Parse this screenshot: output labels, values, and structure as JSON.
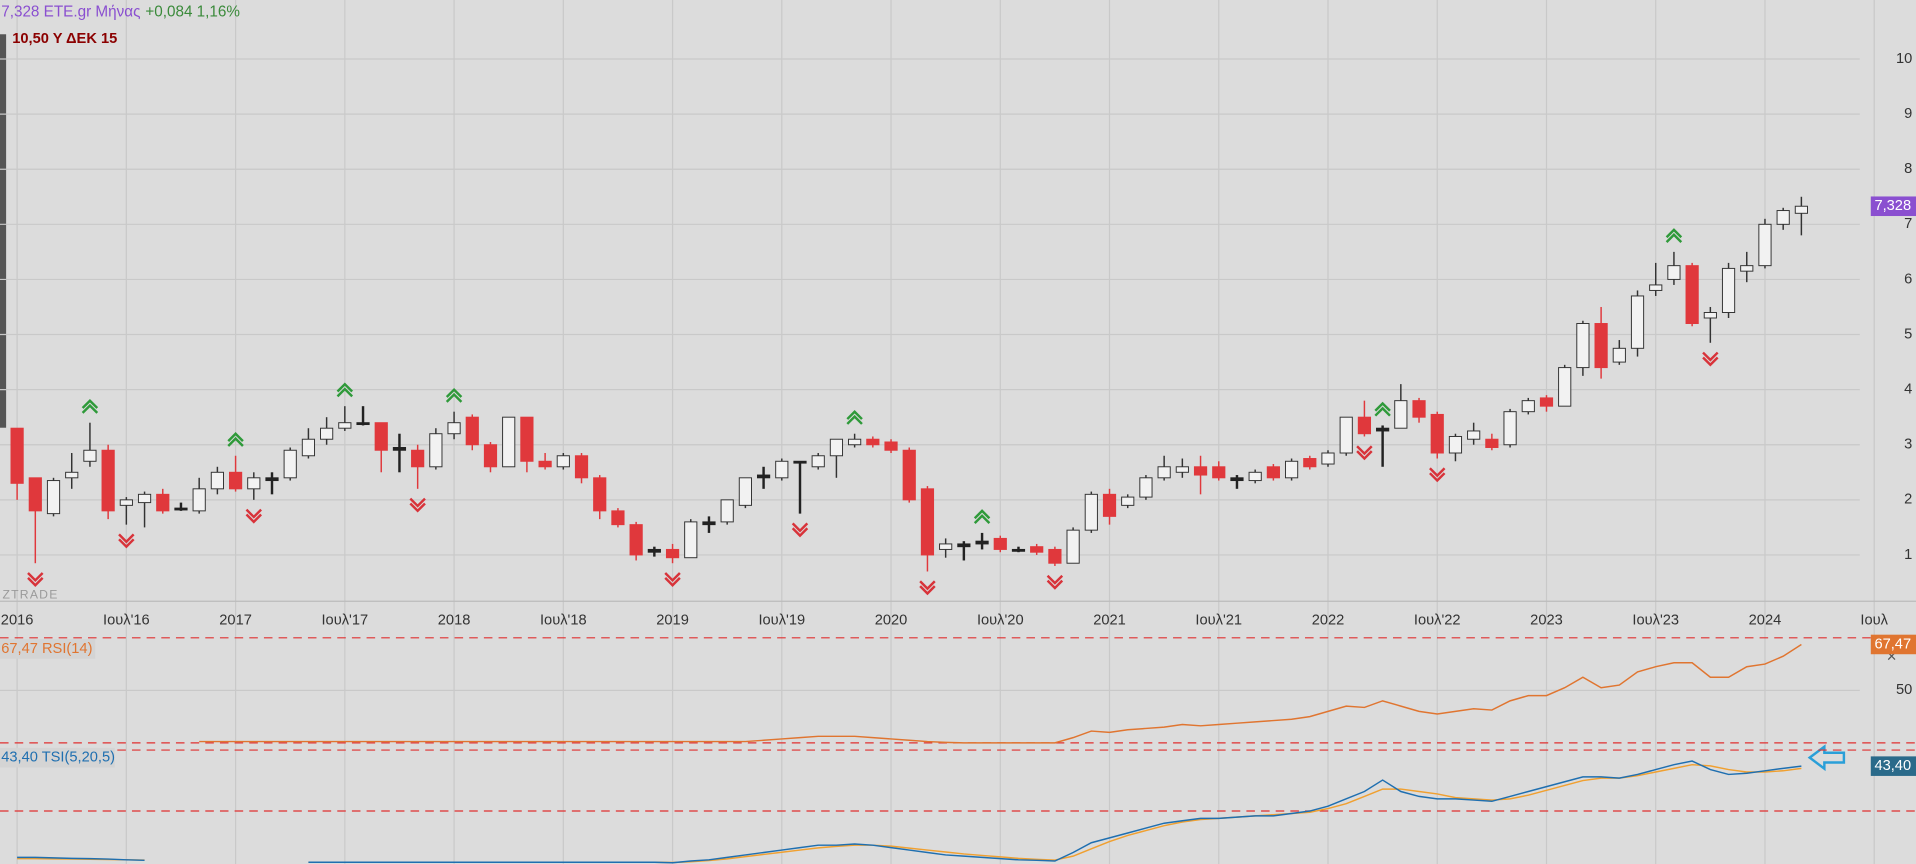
{
  "header": {
    "title": "7,328 ETE.gr Μήνας",
    "change": "+0,084 1,16%",
    "note": "10,50 Υ ΔΕΚ 15",
    "watermark": "ZTRADE"
  },
  "chart_data": [
    {
      "type": "candlestick",
      "up_color": "#f2f2f2",
      "down_color": "#e0383c",
      "grid": true,
      "price_label": "7,328",
      "label_color": "#8a4fd0",
      "categories": [
        "2016",
        null,
        null,
        null,
        null,
        null,
        "Ιουλ'16",
        null,
        null,
        null,
        null,
        null,
        "2017",
        null,
        null,
        null,
        null,
        null,
        "Ιουλ'17",
        null,
        null,
        null,
        null,
        null,
        "2018",
        null,
        null,
        null,
        null,
        null,
        "Ιουλ'18",
        null,
        null,
        null,
        null,
        null,
        "2019",
        null,
        null,
        null,
        null,
        null,
        "Ιουλ'19",
        null,
        null,
        null,
        null,
        null,
        "2020",
        null,
        null,
        null,
        null,
        null,
        "Ιουλ'20",
        null,
        null,
        null,
        null,
        null,
        "2021",
        null,
        null,
        null,
        null,
        null,
        "Ιουλ'21",
        null,
        null,
        null,
        null,
        null,
        "2022",
        null,
        null,
        null,
        null,
        null,
        "Ιουλ'22",
        null,
        null,
        null,
        null,
        null,
        "2023",
        null,
        null,
        null,
        null,
        null,
        "Ιουλ'23",
        null,
        null,
        null,
        null,
        null,
        "2024",
        null,
        null,
        null,
        null,
        null,
        "Ιουλ"
      ],
      "candles": [
        [
          3.3,
          3.3,
          2.0,
          2.3
        ],
        [
          2.4,
          2.4,
          0.85,
          1.8
        ],
        [
          1.75,
          2.4,
          1.7,
          2.35
        ],
        [
          2.4,
          2.85,
          2.2,
          2.5
        ],
        [
          2.7,
          3.4,
          2.6,
          2.9
        ],
        [
          2.9,
          3.0,
          1.65,
          1.8
        ],
        [
          1.9,
          2.05,
          1.55,
          2.0
        ],
        [
          1.95,
          2.15,
          1.5,
          2.1
        ],
        [
          2.1,
          2.2,
          1.75,
          1.8
        ],
        [
          1.85,
          1.95,
          1.8,
          1.85
        ],
        [
          1.8,
          2.4,
          1.75,
          2.2
        ],
        [
          2.2,
          2.6,
          2.1,
          2.5
        ],
        [
          2.5,
          2.8,
          2.15,
          2.2
        ],
        [
          2.2,
          2.5,
          2.0,
          2.4
        ],
        [
          2.35,
          2.5,
          2.1,
          2.4
        ],
        [
          2.4,
          2.95,
          2.35,
          2.9
        ],
        [
          2.8,
          3.3,
          2.75,
          3.1
        ],
        [
          3.1,
          3.5,
          3.0,
          3.3
        ],
        [
          3.3,
          3.7,
          3.25,
          3.4
        ],
        [
          3.4,
          3.7,
          3.35,
          3.38
        ],
        [
          3.4,
          3.4,
          2.5,
          2.9
        ],
        [
          2.95,
          3.2,
          2.5,
          2.9
        ],
        [
          2.9,
          3.0,
          2.2,
          2.6
        ],
        [
          2.6,
          3.3,
          2.55,
          3.2
        ],
        [
          3.2,
          3.6,
          3.1,
          3.4
        ],
        [
          3.5,
          3.55,
          2.9,
          3.0
        ],
        [
          3.0,
          3.05,
          2.5,
          2.6
        ],
        [
          2.6,
          3.5,
          2.6,
          3.5
        ],
        [
          3.5,
          3.5,
          2.5,
          2.7
        ],
        [
          2.7,
          2.85,
          2.55,
          2.6
        ],
        [
          2.6,
          2.85,
          2.55,
          2.8
        ],
        [
          2.8,
          2.85,
          2.3,
          2.4
        ],
        [
          2.4,
          2.45,
          1.65,
          1.8
        ],
        [
          1.8,
          1.85,
          1.5,
          1.55
        ],
        [
          1.55,
          1.6,
          0.9,
          1.0
        ],
        [
          1.05,
          1.15,
          0.97,
          1.1
        ],
        [
          1.1,
          1.2,
          0.85,
          0.95
        ],
        [
          0.95,
          1.65,
          0.95,
          1.6
        ],
        [
          1.6,
          1.7,
          1.4,
          1.55
        ],
        [
          1.6,
          2.0,
          1.55,
          2.0
        ],
        [
          1.9,
          2.4,
          1.85,
          2.4
        ],
        [
          2.4,
          2.6,
          2.2,
          2.45
        ],
        [
          2.4,
          2.75,
          2.35,
          2.7
        ],
        [
          2.7,
          2.7,
          1.75,
          2.68
        ],
        [
          2.6,
          2.85,
          2.55,
          2.8
        ],
        [
          2.8,
          3.1,
          2.4,
          3.1
        ],
        [
          3.0,
          3.2,
          2.95,
          3.1
        ],
        [
          3.1,
          3.15,
          2.95,
          3.0
        ],
        [
          3.05,
          3.1,
          2.85,
          2.9
        ],
        [
          2.9,
          2.95,
          1.95,
          2.0
        ],
        [
          2.2,
          2.25,
          0.7,
          1.0
        ],
        [
          1.1,
          1.3,
          0.95,
          1.2
        ],
        [
          1.2,
          1.25,
          0.9,
          1.15
        ],
        [
          1.2,
          1.4,
          1.1,
          1.25
        ],
        [
          1.3,
          1.35,
          1.05,
          1.1
        ],
        [
          1.1,
          1.15,
          1.05,
          1.1
        ],
        [
          1.15,
          1.2,
          1.0,
          1.05
        ],
        [
          1.1,
          1.15,
          0.8,
          0.85
        ],
        [
          0.85,
          1.5,
          0.85,
          1.45
        ],
        [
          1.45,
          2.15,
          1.4,
          2.1
        ],
        [
          2.1,
          2.2,
          1.55,
          1.7
        ],
        [
          1.9,
          2.1,
          1.85,
          2.05
        ],
        [
          2.05,
          2.45,
          2.0,
          2.4
        ],
        [
          2.4,
          2.8,
          2.35,
          2.6
        ],
        [
          2.5,
          2.75,
          2.4,
          2.6
        ],
        [
          2.6,
          2.8,
          2.1,
          2.45
        ],
        [
          2.6,
          2.7,
          2.35,
          2.4
        ],
        [
          2.4,
          2.45,
          2.2,
          2.35
        ],
        [
          2.35,
          2.55,
          2.3,
          2.5
        ],
        [
          2.6,
          2.65,
          2.35,
          2.4
        ],
        [
          2.4,
          2.75,
          2.35,
          2.7
        ],
        [
          2.75,
          2.8,
          2.55,
          2.6
        ],
        [
          2.65,
          2.9,
          2.6,
          2.85
        ],
        [
          2.85,
          3.5,
          2.8,
          3.5
        ],
        [
          3.5,
          3.8,
          3.15,
          3.2
        ],
        [
          3.25,
          3.35,
          2.6,
          3.3
        ],
        [
          3.3,
          4.1,
          3.3,
          3.8
        ],
        [
          3.8,
          3.85,
          3.4,
          3.5
        ],
        [
          3.55,
          3.6,
          2.75,
          2.85
        ],
        [
          2.85,
          3.2,
          2.7,
          3.15
        ],
        [
          3.1,
          3.4,
          3.0,
          3.25
        ],
        [
          3.1,
          3.2,
          2.9,
          2.95
        ],
        [
          3.0,
          3.65,
          2.95,
          3.6
        ],
        [
          3.6,
          3.85,
          3.55,
          3.8
        ],
        [
          3.85,
          3.9,
          3.6,
          3.7
        ],
        [
          3.7,
          4.45,
          3.7,
          4.4
        ],
        [
          4.4,
          5.25,
          4.25,
          5.2
        ],
        [
          5.2,
          5.5,
          4.2,
          4.4
        ],
        [
          4.5,
          4.9,
          4.45,
          4.75
        ],
        [
          4.75,
          5.8,
          4.6,
          5.7
        ],
        [
          5.8,
          6.3,
          5.7,
          5.9
        ],
        [
          6.0,
          6.5,
          5.9,
          6.25
        ],
        [
          6.25,
          6.3,
          5.15,
          5.2
        ],
        [
          5.3,
          5.5,
          4.85,
          5.4
        ],
        [
          5.4,
          6.3,
          5.3,
          6.2
        ],
        [
          6.15,
          6.5,
          5.95,
          6.25
        ],
        [
          6.25,
          7.1,
          6.2,
          7.0
        ],
        [
          7.0,
          7.3,
          6.9,
          7.25
        ],
        [
          7.2,
          7.5,
          6.8,
          7.328
        ],
        null,
        null,
        null,
        null
      ],
      "markers": [
        null,
        "down",
        null,
        null,
        "up",
        null,
        "down",
        null,
        null,
        null,
        null,
        null,
        "up",
        "down",
        null,
        null,
        null,
        null,
        "up",
        null,
        null,
        null,
        "down",
        null,
        "up",
        null,
        null,
        null,
        null,
        null,
        null,
        null,
        null,
        null,
        null,
        null,
        "down",
        null,
        null,
        null,
        null,
        null,
        null,
        "down",
        null,
        null,
        "up",
        null,
        null,
        null,
        "down",
        null,
        null,
        "up",
        null,
        null,
        null,
        "down",
        null,
        null,
        null,
        null,
        null,
        null,
        null,
        null,
        null,
        null,
        null,
        null,
        null,
        null,
        null,
        null,
        "down",
        "up",
        null,
        null,
        "down",
        null,
        null,
        null,
        null,
        null,
        null,
        null,
        null,
        null,
        null,
        null,
        null,
        "up",
        null,
        "down",
        null,
        null,
        null,
        null,
        null,
        null,
        null,
        null,
        null
      ],
      "ylim": [
        0.16,
        11.07
      ],
      "yticks": [
        1,
        2,
        3,
        4,
        5,
        6,
        7,
        8,
        9,
        10
      ]
    },
    {
      "type": "line",
      "legend": "67,47 RSI(14)",
      "value_label": "67,47",
      "ylim": [
        29.5,
        70.9
      ],
      "yticks": [
        50
      ],
      "levels": [
        30,
        70
      ],
      "series": [
        {
          "color": "#e07530",
          "values": [
            null,
            null,
            null,
            null,
            null,
            null,
            null,
            null,
            null,
            null,
            30.5,
            30.5,
            30.5,
            30.5,
            30.5,
            30.5,
            30.5,
            30.5,
            30.5,
            30.5,
            30.5,
            30.5,
            30.5,
            30.5,
            30.5,
            30.5,
            30.5,
            30.5,
            30.5,
            30.5,
            30.5,
            30.5,
            30.5,
            30.5,
            30.5,
            30.5,
            30.5,
            30.5,
            30.5,
            30.5,
            30.5,
            31,
            31.5,
            32,
            32.5,
            32.5,
            32.5,
            32,
            31.5,
            31,
            30.5,
            30.2,
            30,
            30,
            30,
            30,
            30,
            30,
            32,
            34.5,
            34,
            35,
            35.5,
            36,
            37,
            36.5,
            37,
            37.5,
            38,
            38.5,
            39,
            40,
            42,
            44,
            43.5,
            46,
            44,
            42,
            41,
            42,
            43,
            42.5,
            46,
            48,
            48,
            51,
            55,
            51,
            52,
            57,
            59,
            60.5,
            60.5,
            55,
            55,
            59,
            60,
            63,
            67.47,
            null,
            null,
            null,
            null
          ]
        }
      ]
    },
    {
      "type": "line",
      "legend": "43,40 TSI(5,20,5)",
      "value_label": "43,40",
      "ylim": [
        3.3,
        52.4
      ],
      "levels": [
        25,
        50
      ],
      "series": [
        {
          "color": "#1f6fb0",
          "values": [
            6,
            6,
            5.8,
            5.6,
            5.5,
            5.3,
            5.0,
            4.8,
            null,
            null,
            null,
            null,
            null,
            null,
            null,
            null,
            4,
            4,
            4,
            4,
            4,
            4,
            4,
            4,
            4,
            4,
            4,
            4,
            4,
            4,
            4,
            4,
            4,
            4,
            4,
            4,
            3.8,
            4.5,
            5,
            6,
            7,
            8,
            9,
            10,
            11,
            11,
            11.5,
            11,
            10,
            9,
            8,
            7,
            6.5,
            6,
            5.5,
            5,
            4.8,
            4.5,
            8,
            12,
            14,
            16,
            18,
            20,
            21,
            22,
            22,
            22.5,
            23,
            23,
            24,
            25,
            27,
            30,
            33,
            37.7,
            33,
            31,
            30,
            30,
            29.5,
            29,
            31,
            33,
            35,
            37,
            39,
            39,
            38.5,
            40,
            42,
            44,
            45.5,
            42,
            40,
            40.5,
            41.5,
            42.5,
            43.4,
            null,
            null,
            null,
            null
          ]
        },
        {
          "color": "#f0a030",
          "values": [
            5.5,
            5.5,
            5.4,
            5.3,
            5.2,
            5.1,
            5.0,
            4.9,
            null,
            null,
            null,
            null,
            null,
            null,
            null,
            null,
            4,
            4,
            4,
            4,
            4,
            4,
            4,
            4,
            4,
            4,
            4,
            4,
            4,
            4,
            4,
            4,
            4,
            4,
            4,
            4,
            3.9,
            4.2,
            4.7,
            5.4,
            6.3,
            7.2,
            8.1,
            9,
            9.9,
            10.5,
            11,
            11,
            10.6,
            9.8,
            9,
            8.2,
            7.4,
            6.8,
            6.2,
            5.6,
            5.2,
            4.9,
            6.5,
            9.5,
            12.5,
            15,
            17,
            19,
            20.5,
            21.5,
            22,
            22.5,
            23,
            23.5,
            24,
            24.5,
            26,
            28,
            31,
            34,
            34,
            33,
            32,
            30.5,
            30,
            29.5,
            30,
            31.5,
            33.5,
            35.5,
            37.5,
            38.5,
            38.5,
            39.5,
            41,
            42.5,
            44,
            43.5,
            42,
            41,
            41,
            41.5,
            42.5,
            null,
            null,
            null,
            null
          ]
        }
      ]
    }
  ]
}
